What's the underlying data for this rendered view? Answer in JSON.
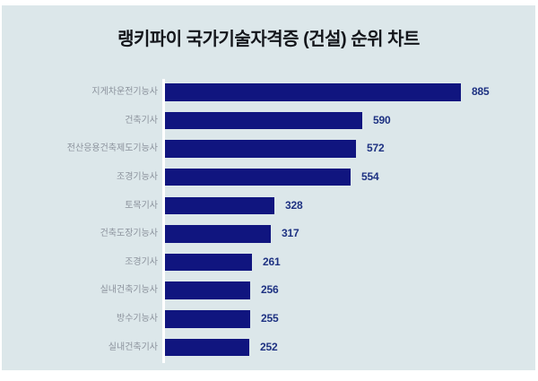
{
  "title": "랭키파이 국가기술자격증 (건설) 순위 차트",
  "colors": {
    "panel_bg": "#dce7ea",
    "bar": "#10157f",
    "value_text": "#1e3282",
    "label_text": "#8b929c",
    "title_text": "#14161b",
    "axis_line": "#ffffff"
  },
  "chart_data": {
    "type": "bar",
    "orientation": "horizontal",
    "title": "랭키파이 국가기술자격증 (건설) 순위 차트",
    "categories": [
      "지게차운전기능사",
      "건축기사",
      "전산응용건축제도기능사",
      "조경기능사",
      "토목기사",
      "건축도장기능사",
      "조경기사",
      "실내건축기능사",
      "방수기능사",
      "실내건축기사"
    ],
    "values": [
      885,
      590,
      572,
      554,
      328,
      317,
      261,
      256,
      255,
      252
    ],
    "xlim": [
      0,
      885
    ],
    "grid": false,
    "value_labels": "right-of-bar"
  }
}
